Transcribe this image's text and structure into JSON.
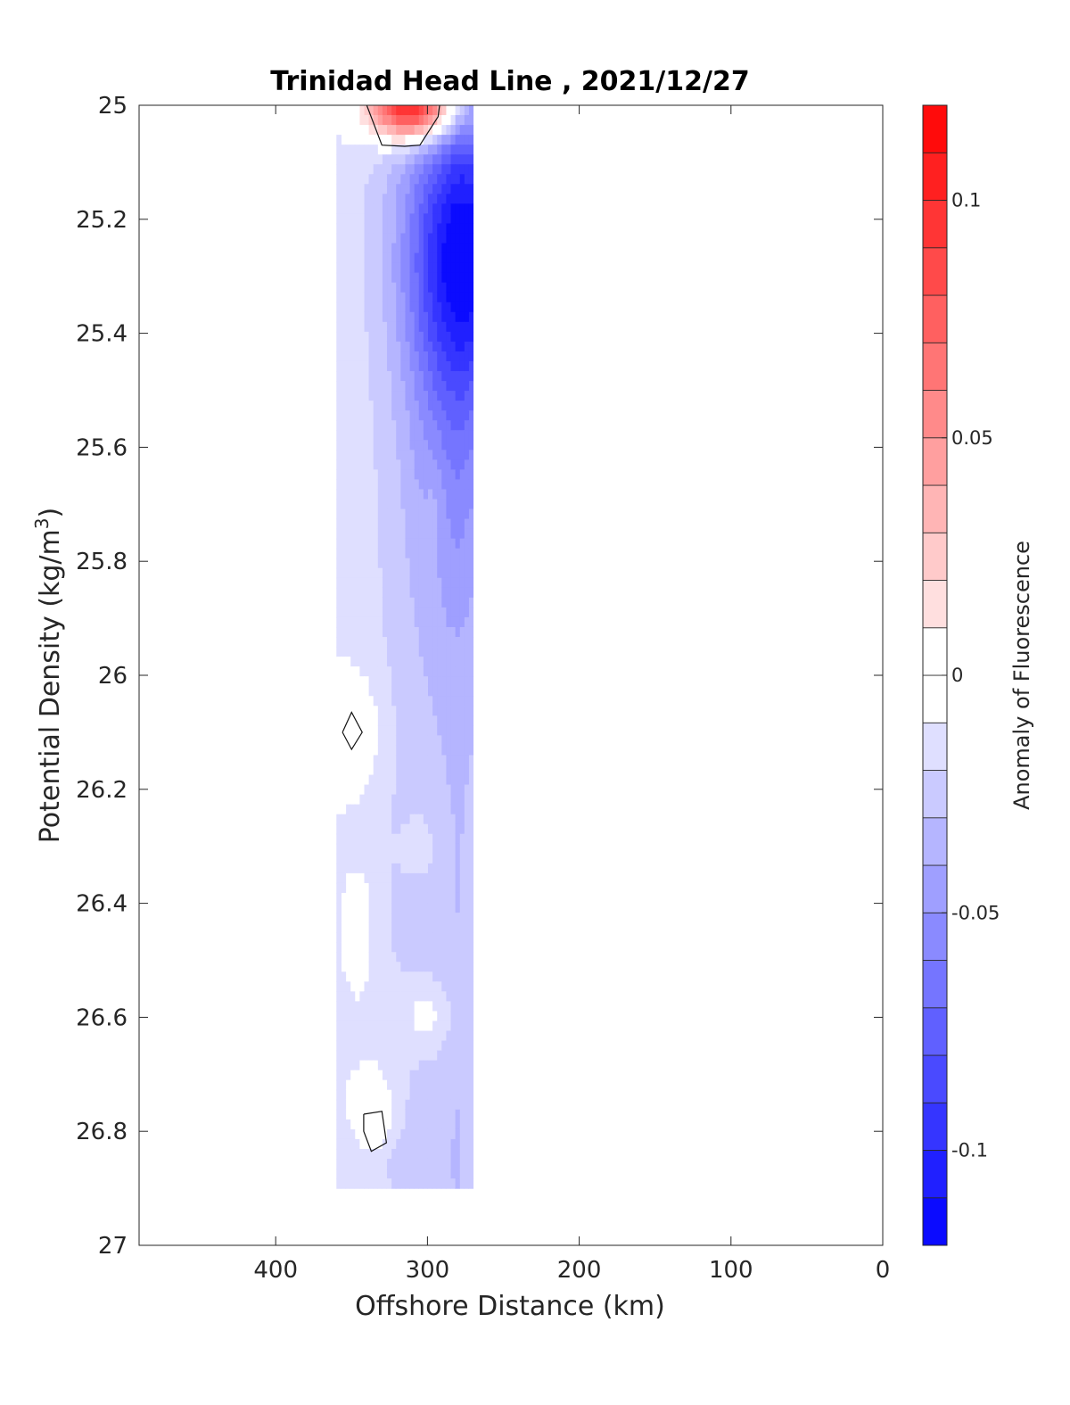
{
  "chart_data": {
    "type": "heatmap",
    "title": "Trinidad Head Line , 2021/12/27",
    "xlabel": "Offshore Distance (km)",
    "ylabel_main": "Potential Density (kg/m",
    "ylabel_sup": "3",
    "ylabel_close": ")",
    "xlim": [
      490,
      0
    ],
    "ylim": [
      25,
      27
    ],
    "x_reversed": true,
    "y_reversed": true,
    "xticks": [
      400,
      300,
      200,
      100,
      0
    ],
    "yticks": [
      25,
      25.2,
      25.4,
      25.6,
      25.8,
      26,
      26.2,
      26.4,
      26.6,
      26.8,
      27
    ],
    "x_tick_labels": [
      "400",
      "300",
      "200",
      "100",
      "0"
    ],
    "y_tick_labels": [
      "25",
      "25.2",
      "25.4",
      "25.6",
      "25.8",
      "26",
      "26.2",
      "26.4",
      "26.6",
      "26.8",
      "27"
    ],
    "data_extent": {
      "x": [
        270,
        360
      ],
      "y": [
        25,
        26.9
      ]
    },
    "colorbar": {
      "label": "Anomaly of Fluorescence",
      "range": [
        -0.12,
        0.12
      ],
      "ticks": [
        0.1,
        0.05,
        0,
        -0.05,
        -0.1
      ],
      "tick_labels": [
        "0.1",
        "0.05",
        "0",
        "-0.05",
        "-0.1"
      ],
      "levels": 24,
      "colormap": "blue-white-red",
      "low_color": "#0000ff",
      "mid_color": "#ffffff",
      "high_color": "#ff0000"
    },
    "contour_zero_line": true,
    "grid": false
  }
}
